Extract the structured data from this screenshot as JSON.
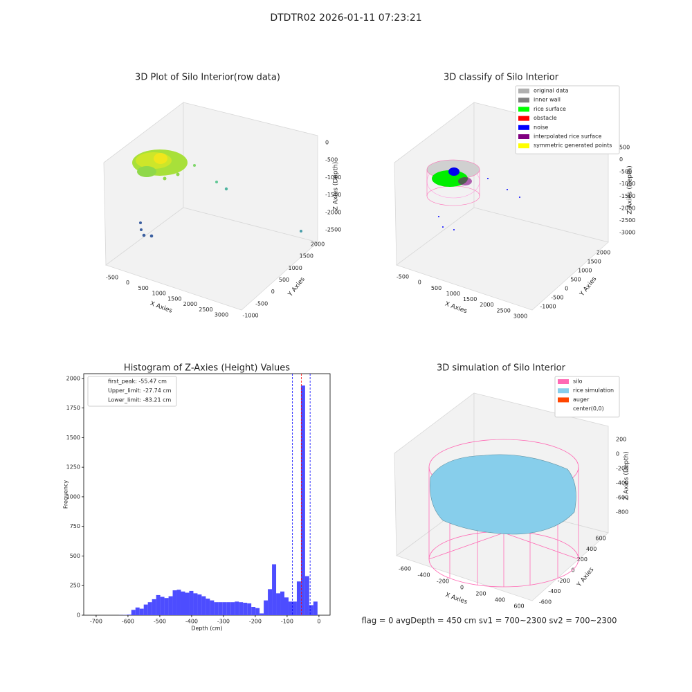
{
  "suptitle": "DTDTR02 2026-01-11 07:23:21",
  "footer": "flag = 0     avgDepth = 450 cm  sv1 = 700~2300  sv2 = 700~2300",
  "chart_data": [
    {
      "type": "scatter3d",
      "title": "3D Plot of Silo Interior(row data)",
      "xlabel": "X Axies",
      "ylabel": "Y Axies",
      "zlabel": "Z Axies (Depth)",
      "xticks": [
        -500,
        0,
        500,
        1000,
        1500,
        2000,
        2500,
        3000
      ],
      "yticks": [
        -1000,
        -500,
        0,
        500,
        1000,
        1500,
        2000
      ],
      "zticks": [
        0,
        -500,
        -1000,
        -1500,
        -2000,
        -2500
      ]
    },
    {
      "type": "scatter3d",
      "title": "3D classify of Silo Interior",
      "xlabel": "X Axies",
      "ylabel": "Y Axies",
      "zlabel": "Z Axies (Depth)",
      "xticks": [
        -500,
        0,
        500,
        1000,
        1500,
        2000,
        2500,
        3000
      ],
      "yticks": [
        -1000,
        -500,
        0,
        500,
        1000,
        1500,
        2000
      ],
      "zticks": [
        500,
        0,
        -500,
        -1000,
        -1500,
        -2000,
        -2500,
        -3000
      ],
      "legend": "upper right",
      "legend_entries": [
        {
          "name": "original data",
          "color": "#b0b0b0"
        },
        {
          "name": "inner wall",
          "color": "#808080"
        },
        {
          "name": "rice surface",
          "color": "#00ff00"
        },
        {
          "name": "obstacle",
          "color": "#ff0000"
        },
        {
          "name": "noise",
          "color": "#0000ff"
        },
        {
          "name": "interpolated rice surface",
          "color": "#800080"
        },
        {
          "name": "symmetric generated points",
          "color": "#ffff00"
        }
      ]
    },
    {
      "type": "histogram",
      "title": "Histogram of Z-Axies (Height) Values",
      "xlabel": "Depth (cm)",
      "ylabel": "Frequency",
      "color": "#4d4dff",
      "bins": [
        -628.5,
        -615.5,
        -602.5,
        -589.5,
        -576.5,
        -563.5,
        -550.5,
        -537.5,
        -524.5,
        -511.5,
        -498.5,
        -485.5,
        -472.5,
        -459.5,
        -446.5,
        -433.5,
        -420.5,
        -407.5,
        -394.5,
        -381.5,
        -368.5,
        -355.5,
        -342.5,
        -329.5,
        -316.5,
        -303.5,
        -290.5,
        -277.5,
        -264.5,
        -251.5,
        -238.5,
        -225.5,
        -212.5,
        -199.5,
        -186.5,
        -173.5,
        -160.5,
        -147.5,
        -134.5,
        -121.5,
        -108.5,
        -95.5,
        -82.5,
        -69.5,
        -56.5,
        -43.5,
        -30.5,
        -17.5,
        -4.5
      ],
      "values": [
        1,
        2,
        5,
        45,
        65,
        55,
        90,
        110,
        135,
        170,
        155,
        145,
        160,
        210,
        215,
        200,
        190,
        205,
        185,
        175,
        160,
        140,
        125,
        110,
        110,
        110,
        110,
        110,
        115,
        110,
        105,
        100,
        70,
        60,
        15,
        125,
        220,
        430,
        185,
        200,
        150,
        115,
        115,
        285,
        1940,
        330,
        85,
        115
      ],
      "xlim": [
        -739,
        35
      ],
      "ylim": [
        0,
        2040
      ],
      "xticks": [
        -700,
        -600,
        -500,
        -400,
        -300,
        -200,
        -100,
        0
      ],
      "yticks": [
        0,
        250,
        500,
        750,
        1000,
        1250,
        1500,
        1750,
        2000
      ],
      "legend": "upper left",
      "vlines": [
        {
          "name": "first_peak: -55.47 cm",
          "value": -55.47,
          "color": "#ff0000"
        },
        {
          "name": "Upper_limit: -27.74 cm",
          "value": -27.74,
          "color": "#0000ff"
        },
        {
          "name": "Lower_limit: -83.21 cm",
          "value": -83.21,
          "color": "#0000ff"
        }
      ]
    },
    {
      "type": "surface3d",
      "title": "3D simulation of Silo Interior",
      "xlabel": "X Axies",
      "ylabel": "Y Axies",
      "zlabel": "Z Axies (Depth)",
      "xticks": [
        -600,
        -400,
        -200,
        0,
        200,
        400,
        600
      ],
      "yticks": [
        -600,
        -400,
        -200,
        0,
        200,
        400,
        600
      ],
      "zticks": [
        200,
        0,
        -200,
        -400,
        -600,
        -800
      ],
      "legend": "upper right",
      "legend_entries": [
        {
          "name": "silo",
          "color": "#ff69b4"
        },
        {
          "name": "rice simulation",
          "color": "#87ceeb"
        },
        {
          "name": "auger",
          "color": "#ff4500"
        },
        {
          "name": "center(0,0)",
          "color": "#ffffff"
        }
      ]
    }
  ]
}
